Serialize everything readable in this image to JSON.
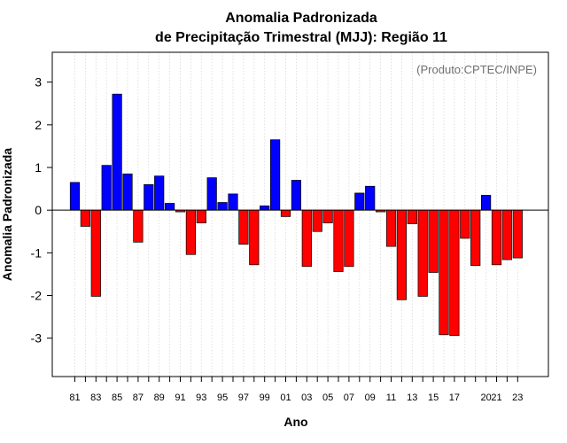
{
  "chart_data": {
    "type": "bar",
    "title": [
      "Anomalia Padronizada",
      "de Precipitação Trimestral (MJJ): Região 11"
    ],
    "xlabel": "Ano",
    "ylabel": "Anomalia Padronizada",
    "credit": "(Produto:CPTEC/INPE)",
    "ylim": [
      -3.9,
      3.7
    ],
    "yticks": [
      -3,
      -2,
      -1,
      0,
      1,
      2,
      3
    ],
    "grid": true,
    "positive_color": "#0000ff",
    "negative_color": "#ff0000",
    "x": [
      "81",
      "82",
      "83",
      "84",
      "85",
      "86",
      "87",
      "88",
      "89",
      "90",
      "91",
      "92",
      "93",
      "94",
      "95",
      "96",
      "97",
      "98",
      "99",
      "00",
      "01",
      "02",
      "03",
      "04",
      "05",
      "06",
      "07",
      "08",
      "09",
      "10",
      "11",
      "12",
      "13",
      "14",
      "15",
      "16",
      "17",
      "18",
      "19",
      "20",
      "21",
      "22",
      "23"
    ],
    "values": [
      0.65,
      -0.38,
      -2.02,
      1.05,
      2.72,
      0.85,
      -0.75,
      0.6,
      0.8,
      0.16,
      -0.04,
      -1.04,
      -0.3,
      0.76,
      0.18,
      0.38,
      -0.8,
      -1.28,
      0.1,
      1.65,
      -0.15,
      0.7,
      -1.32,
      -0.5,
      -0.3,
      -1.44,
      -1.32,
      0.4,
      0.56,
      -0.04,
      -0.85,
      -2.1,
      -0.32,
      -2.02,
      -1.46,
      -2.92,
      -2.94,
      -0.66,
      -1.3,
      0.35,
      -1.28,
      -1.16,
      -1.12
    ],
    "xtick_labels": [
      "81",
      "83",
      "85",
      "87",
      "89",
      "91",
      "93",
      "95",
      "97",
      "99",
      "01",
      "03",
      "05",
      "07",
      "09",
      "11",
      "13",
      "15",
      "17",
      "20",
      "21",
      "23"
    ]
  }
}
